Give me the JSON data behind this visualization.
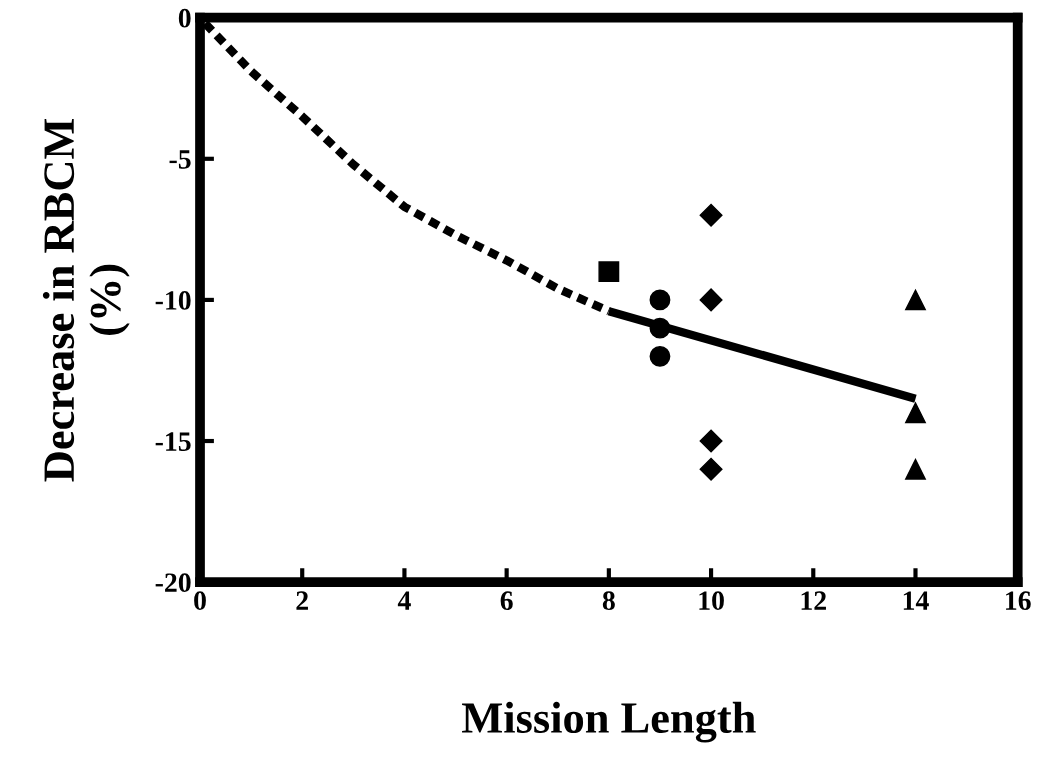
{
  "chart_data": {
    "type": "scatter",
    "xlabel": "Mission Length",
    "ylabel": "Decrease in RBCM\n(%)",
    "xlim": [
      0,
      16
    ],
    "xticks": [
      0,
      2,
      4,
      6,
      8,
      10,
      12,
      14,
      16
    ],
    "ylim": [
      -20,
      0
    ],
    "yticks": [
      {
        "value": -20,
        "label": "-20"
      },
      {
        "value": -15,
        "label": "-15"
      },
      {
        "value": -10,
        "label": "-10"
      },
      {
        "value": -5,
        "label": "-5"
      },
      {
        "value": 0,
        "label": "0"
      }
    ],
    "grid": false,
    "legend": false,
    "series": [
      {
        "marker": "square",
        "color": "#000000",
        "x": [
          8
        ],
        "values": [
          -9.0
        ]
      },
      {
        "marker": "circle",
        "color": "#000000",
        "x": [
          9,
          9,
          9
        ],
        "values": [
          -10,
          -11,
          -12
        ]
      },
      {
        "marker": "diamond",
        "color": "#000000",
        "x": [
          10,
          10,
          10,
          10
        ],
        "values": [
          -7,
          -10,
          -15,
          -16
        ]
      },
      {
        "marker": "triangle",
        "color": "#000000",
        "x": [
          14,
          14,
          14
        ],
        "values": [
          -10,
          -14,
          -16
        ]
      },
      {
        "type": "line",
        "marker": "none",
        "line_style": "dashed",
        "color": "#000000",
        "x": [
          0.1,
          1,
          2,
          3,
          4,
          5,
          6,
          7,
          8
        ],
        "values": [
          -0.2,
          -1.9,
          -3.5,
          -5.2,
          -6.7,
          -7.7,
          -8.6,
          -9.6,
          -10.4
        ]
      },
      {
        "type": "line",
        "marker": "none",
        "line_style": "solid",
        "color": "#000000",
        "x": [
          8,
          14
        ],
        "values": [
          -10.4,
          -13.5
        ]
      }
    ]
  }
}
